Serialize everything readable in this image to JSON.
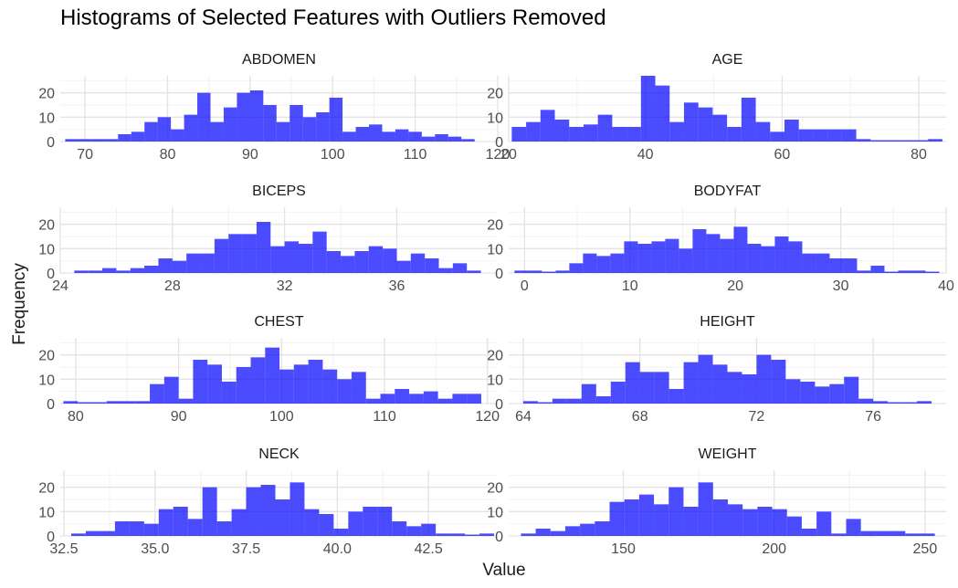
{
  "figure": {
    "title": "Histograms of Selected Features with Outliers Removed",
    "ylabel": "Frequency",
    "xlabel": "Value"
  },
  "chart_data": [
    {
      "type": "histogram",
      "facet": "ABDOMEN",
      "bar_color": "#0000FF",
      "bar_opacity": 0.7,
      "grid": true,
      "xlim": [
        67,
        120
      ],
      "ylim": [
        0,
        27
      ],
      "x_ticks": [
        "70",
        "80",
        "90",
        "100",
        "110",
        "120"
      ],
      "y_ticks": [
        "0",
        "10",
        "20"
      ],
      "bins": [
        [
          68.4,
          1
        ],
        [
          70.0,
          1
        ],
        [
          71.6,
          1
        ],
        [
          73.2,
          1
        ],
        [
          74.8,
          3
        ],
        [
          76.4,
          4
        ],
        [
          78.0,
          8
        ],
        [
          79.6,
          10
        ],
        [
          81.2,
          5
        ],
        [
          82.8,
          11
        ],
        [
          84.4,
          20
        ],
        [
          86.0,
          8
        ],
        [
          87.6,
          14
        ],
        [
          89.2,
          20
        ],
        [
          90.8,
          21
        ],
        [
          92.4,
          15
        ],
        [
          94.0,
          8
        ],
        [
          95.6,
          15
        ],
        [
          97.2,
          10
        ],
        [
          98.8,
          12
        ],
        [
          100.4,
          18
        ],
        [
          102.0,
          4
        ],
        [
          103.6,
          6
        ],
        [
          105.2,
          7
        ],
        [
          106.8,
          4
        ],
        [
          108.4,
          5
        ],
        [
          110.0,
          4
        ],
        [
          111.6,
          2
        ],
        [
          113.2,
          3
        ],
        [
          114.8,
          2
        ],
        [
          116.4,
          1
        ]
      ]
    },
    {
      "type": "histogram",
      "facet": "AGE",
      "bar_color": "#0000FF",
      "bar_opacity": 0.7,
      "grid": true,
      "xlim": [
        20,
        84
      ],
      "ylim": [
        0,
        27
      ],
      "x_ticks": [
        "20",
        "40",
        "60",
        "80"
      ],
      "y_ticks": [
        "0",
        "10",
        "20"
      ],
      "bins": [
        [
          21.5,
          6
        ],
        [
          23.6,
          8
        ],
        [
          25.7,
          13
        ],
        [
          27.8,
          9
        ],
        [
          29.9,
          6
        ],
        [
          32.0,
          7
        ],
        [
          34.1,
          11
        ],
        [
          36.2,
          6
        ],
        [
          38.3,
          6
        ],
        [
          40.4,
          27
        ],
        [
          42.5,
          23
        ],
        [
          44.6,
          8
        ],
        [
          46.7,
          16
        ],
        [
          48.8,
          14
        ],
        [
          50.9,
          11
        ],
        [
          53.0,
          6
        ],
        [
          55.1,
          18
        ],
        [
          57.2,
          8
        ],
        [
          59.3,
          4
        ],
        [
          61.4,
          9
        ],
        [
          63.5,
          5
        ],
        [
          65.6,
          5
        ],
        [
          67.7,
          5
        ],
        [
          69.8,
          5
        ],
        [
          71.9,
          1
        ],
        [
          74.0,
          0
        ],
        [
          76.1,
          0
        ],
        [
          78.2,
          0
        ],
        [
          80.3,
          0
        ],
        [
          82.4,
          1
        ]
      ]
    },
    {
      "type": "histogram",
      "facet": "BICEPS",
      "bar_color": "#0000FF",
      "bar_opacity": 0.7,
      "grid": true,
      "xlim": [
        24,
        39.6
      ],
      "ylim": [
        0,
        27
      ],
      "x_ticks": [
        "24",
        "28",
        "32",
        "36"
      ],
      "y_ticks": [
        "0",
        "10",
        "20"
      ],
      "bins": [
        [
          24.75,
          1
        ],
        [
          25.25,
          1
        ],
        [
          25.75,
          2
        ],
        [
          26.25,
          1
        ],
        [
          26.75,
          2
        ],
        [
          27.25,
          3
        ],
        [
          27.75,
          6
        ],
        [
          28.25,
          5
        ],
        [
          28.75,
          8
        ],
        [
          29.25,
          8
        ],
        [
          29.75,
          14
        ],
        [
          30.25,
          16
        ],
        [
          30.75,
          16
        ],
        [
          31.25,
          21
        ],
        [
          31.75,
          11
        ],
        [
          32.25,
          13
        ],
        [
          32.75,
          12
        ],
        [
          33.25,
          17
        ],
        [
          33.75,
          9
        ],
        [
          34.25,
          7
        ],
        [
          34.75,
          9
        ],
        [
          35.25,
          11
        ],
        [
          35.75,
          10
        ],
        [
          36.25,
          5
        ],
        [
          36.75,
          8
        ],
        [
          37.25,
          6
        ],
        [
          37.75,
          2
        ],
        [
          38.25,
          4
        ],
        [
          38.75,
          1
        ]
      ]
    },
    {
      "type": "histogram",
      "facet": "BODYFAT",
      "bar_color": "#0000FF",
      "bar_opacity": 0.7,
      "grid": true,
      "xlim": [
        -1.5,
        40
      ],
      "ylim": [
        0,
        27
      ],
      "x_ticks": [
        "0",
        "10",
        "20",
        "30",
        "40"
      ],
      "y_ticks": [
        "0",
        "10",
        "20"
      ],
      "bins": [
        [
          -0.3,
          1
        ],
        [
          1.0,
          1
        ],
        [
          2.3,
          0
        ],
        [
          3.6,
          1
        ],
        [
          4.9,
          4
        ],
        [
          6.2,
          8
        ],
        [
          7.5,
          7
        ],
        [
          8.8,
          8
        ],
        [
          10.1,
          13
        ],
        [
          11.4,
          12
        ],
        [
          12.7,
          13
        ],
        [
          14.0,
          14
        ],
        [
          15.3,
          10
        ],
        [
          16.6,
          18
        ],
        [
          17.9,
          16
        ],
        [
          19.2,
          14
        ],
        [
          20.5,
          19
        ],
        [
          21.8,
          12
        ],
        [
          23.1,
          11
        ],
        [
          24.4,
          15
        ],
        [
          25.7,
          13
        ],
        [
          27.0,
          8
        ],
        [
          28.3,
          8
        ],
        [
          29.6,
          6
        ],
        [
          30.9,
          6
        ],
        [
          32.2,
          1
        ],
        [
          33.5,
          3
        ],
        [
          34.8,
          0
        ],
        [
          36.1,
          1
        ],
        [
          37.4,
          1
        ],
        [
          38.7,
          0
        ]
      ]
    },
    {
      "type": "histogram",
      "facet": "CHEST",
      "bar_color": "#0000FF",
      "bar_opacity": 0.7,
      "grid": true,
      "xlim": [
        78.5,
        121
      ],
      "ylim": [
        0,
        27
      ],
      "x_ticks": [
        "80",
        "90",
        "100",
        "110",
        "120"
      ],
      "y_ticks": [
        "0",
        "10",
        "20"
      ],
      "bins": [
        [
          79.5,
          1
        ],
        [
          80.9,
          0
        ],
        [
          82.3,
          0
        ],
        [
          83.7,
          1
        ],
        [
          85.1,
          1
        ],
        [
          86.5,
          1
        ],
        [
          87.9,
          8
        ],
        [
          89.3,
          11
        ],
        [
          90.7,
          2
        ],
        [
          92.1,
          18
        ],
        [
          93.5,
          16
        ],
        [
          94.9,
          9
        ],
        [
          96.3,
          15
        ],
        [
          97.7,
          19
        ],
        [
          99.1,
          23
        ],
        [
          100.5,
          14
        ],
        [
          101.9,
          16
        ],
        [
          103.3,
          18
        ],
        [
          104.7,
          14
        ],
        [
          106.1,
          10
        ],
        [
          107.5,
          13
        ],
        [
          108.9,
          2
        ],
        [
          110.3,
          4
        ],
        [
          111.7,
          6
        ],
        [
          113.1,
          4
        ],
        [
          114.5,
          5
        ],
        [
          115.9,
          2
        ],
        [
          117.3,
          4
        ],
        [
          118.7,
          4
        ]
      ]
    },
    {
      "type": "histogram",
      "facet": "HEIGHT",
      "bar_color": "#0000FF",
      "bar_opacity": 0.7,
      "grid": true,
      "xlim": [
        63.5,
        78.5
      ],
      "ylim": [
        0,
        27
      ],
      "x_ticks": [
        "64",
        "68",
        "72",
        "76"
      ],
      "y_ticks": [
        "0",
        "10",
        "20"
      ],
      "bins": [
        [
          64.25,
          1
        ],
        [
          64.75,
          0
        ],
        [
          65.25,
          2
        ],
        [
          65.75,
          2
        ],
        [
          66.25,
          8
        ],
        [
          66.75,
          3
        ],
        [
          67.25,
          9
        ],
        [
          67.75,
          17
        ],
        [
          68.25,
          13
        ],
        [
          68.75,
          13
        ],
        [
          69.25,
          6
        ],
        [
          69.75,
          17
        ],
        [
          70.25,
          20
        ],
        [
          70.75,
          16
        ],
        [
          71.25,
          13
        ],
        [
          71.75,
          12
        ],
        [
          72.25,
          20
        ],
        [
          72.75,
          18
        ],
        [
          73.25,
          10
        ],
        [
          73.75,
          9
        ],
        [
          74.25,
          7
        ],
        [
          74.75,
          8
        ],
        [
          75.25,
          11
        ],
        [
          75.75,
          2
        ],
        [
          76.25,
          1
        ],
        [
          76.75,
          0
        ],
        [
          77.25,
          0
        ],
        [
          77.75,
          1
        ]
      ]
    },
    {
      "type": "histogram",
      "facet": "NECK",
      "bar_color": "#0000FF",
      "bar_opacity": 0.7,
      "grid": true,
      "xlim": [
        32.4,
        44.4
      ],
      "ylim": [
        0,
        27
      ],
      "x_ticks": [
        "32.5",
        "35.0",
        "37.5",
        "40.0",
        "42.5"
      ],
      "y_ticks": [
        "0",
        "10",
        "20"
      ],
      "bins": [
        [
          32.9,
          1
        ],
        [
          33.3,
          2
        ],
        [
          33.7,
          2
        ],
        [
          34.1,
          6
        ],
        [
          34.5,
          6
        ],
        [
          34.9,
          5
        ],
        [
          35.3,
          11
        ],
        [
          35.7,
          12
        ],
        [
          36.1,
          7
        ],
        [
          36.5,
          20
        ],
        [
          36.9,
          6
        ],
        [
          37.3,
          11
        ],
        [
          37.7,
          20
        ],
        [
          38.1,
          21
        ],
        [
          38.5,
          15
        ],
        [
          38.9,
          22
        ],
        [
          39.3,
          11
        ],
        [
          39.7,
          9
        ],
        [
          40.1,
          3
        ],
        [
          40.5,
          10
        ],
        [
          40.9,
          12
        ],
        [
          41.3,
          12
        ],
        [
          41.7,
          6
        ],
        [
          42.1,
          4
        ],
        [
          42.5,
          5
        ],
        [
          42.9,
          1
        ],
        [
          43.3,
          1
        ],
        [
          43.7,
          0
        ],
        [
          44.1,
          1
        ]
      ]
    },
    {
      "type": "histogram",
      "facet": "WEIGHT",
      "bar_color": "#0000FF",
      "bar_opacity": 0.7,
      "grid": true,
      "xlim": [
        112,
        257
      ],
      "ylim": [
        0,
        27
      ],
      "x_ticks": [
        "150",
        "200",
        "250"
      ],
      "y_ticks": [
        "0",
        "10",
        "20"
      ],
      "bins": [
        [
          118.5,
          1
        ],
        [
          123.4,
          3
        ],
        [
          128.3,
          2
        ],
        [
          133.2,
          4
        ],
        [
          138.1,
          5
        ],
        [
          143.0,
          6
        ],
        [
          147.9,
          14
        ],
        [
          152.8,
          15
        ],
        [
          157.7,
          17
        ],
        [
          162.6,
          13
        ],
        [
          167.5,
          20
        ],
        [
          172.4,
          12
        ],
        [
          177.3,
          22
        ],
        [
          182.2,
          15
        ],
        [
          187.1,
          13
        ],
        [
          192.0,
          11
        ],
        [
          196.9,
          12
        ],
        [
          201.8,
          11
        ],
        [
          206.7,
          8
        ],
        [
          211.6,
          3
        ],
        [
          216.5,
          10
        ],
        [
          221.4,
          1
        ],
        [
          226.3,
          7
        ],
        [
          231.2,
          2
        ],
        [
          236.1,
          2
        ],
        [
          241.0,
          2
        ],
        [
          245.9,
          1
        ],
        [
          250.8,
          1
        ]
      ]
    }
  ]
}
